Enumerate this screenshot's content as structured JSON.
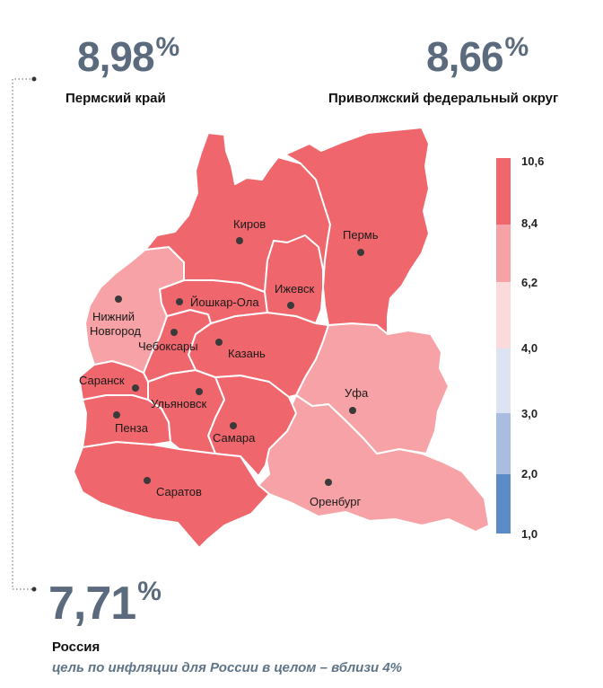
{
  "stats": {
    "perm_value": "8,98",
    "perm_label": "Пермский край",
    "volga_value": "8,66",
    "volga_label": "Приволжский федеральный округ",
    "russia_value": "7,71",
    "russia_label": "Россия",
    "percent_sign": "%",
    "target_note": "цель по инфляции для России в целом – вблизи 4%"
  },
  "legend": {
    "ticks": [
      "10,6",
      "8,4",
      "6,2",
      "4,0",
      "3,0",
      "2,0",
      "1,0"
    ],
    "colors": [
      "#f0666d",
      "#f7a2a6",
      "#fbdadc",
      "#dde3f2",
      "#a9bde0",
      "#5c8cc8"
    ]
  },
  "regions": [
    {
      "name": "Пермский край",
      "color": "#f0666d"
    },
    {
      "name": "Кировская область",
      "color": "#f0666d"
    },
    {
      "name": "Удмуртская Республика",
      "color": "#f0666d"
    },
    {
      "name": "Республика Марий Эл",
      "color": "#f0666d"
    },
    {
      "name": "Чувашская Республика",
      "color": "#f0666d"
    },
    {
      "name": "Республика Татарстан",
      "color": "#f0666d"
    },
    {
      "name": "Нижегородская область",
      "color": "#f7a2a6"
    },
    {
      "name": "Республика Мордовия",
      "color": "#f0666d"
    },
    {
      "name": "Ульяновская область",
      "color": "#f0666d"
    },
    {
      "name": "Пензенская область",
      "color": "#f0666d"
    },
    {
      "name": "Самарская область",
      "color": "#f0666d"
    },
    {
      "name": "Саратовская область",
      "color": "#f0666d"
    },
    {
      "name": "Республика Башкортостан",
      "color": "#f7a2a6"
    },
    {
      "name": "Оренбургская область",
      "color": "#f7a2a6"
    }
  ],
  "cities": [
    "Киров",
    "Пермь",
    "Ижевск",
    "Йошкар-Ола",
    "Нижний",
    "Новгород",
    "Чебоксары",
    "Казань",
    "Саранск",
    "Ульяновск",
    "Пенза",
    "Самара",
    "Уфа",
    "Саратов",
    "Оренбург"
  ]
}
